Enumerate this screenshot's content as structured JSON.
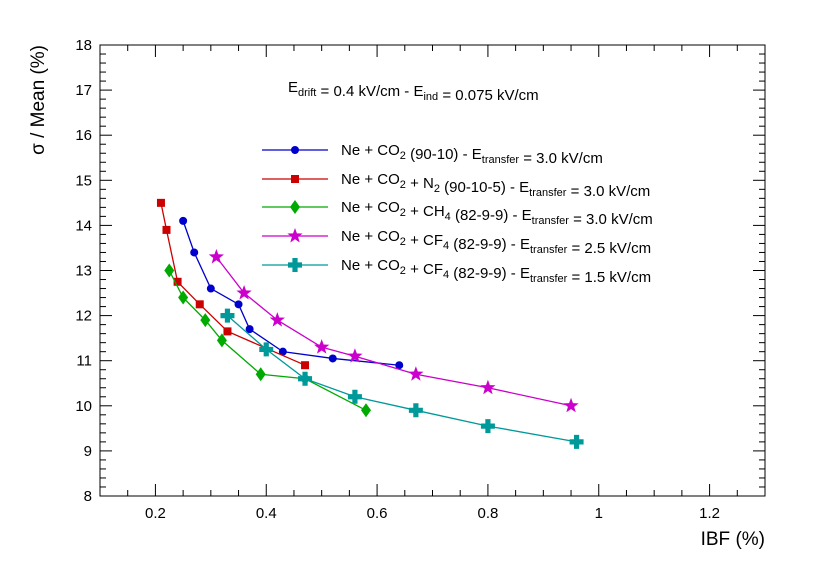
{
  "chart_data": {
    "type": "line",
    "title": "",
    "xlabel": "IBF (%)",
    "ylabel": "σ / Mean (%)",
    "xlim": [
      0.1,
      1.3
    ],
    "ylim": [
      8,
      18
    ],
    "x_ticks": [
      "0.2",
      "0.4",
      "0.6",
      "0.8",
      "1",
      "1.2"
    ],
    "y_ticks": [
      "8",
      "9",
      "10",
      "11",
      "12",
      "13",
      "14",
      "15",
      "16",
      "17",
      "18"
    ],
    "x_tick_values": [
      0.2,
      0.4,
      0.6,
      0.8,
      1.0,
      1.2
    ],
    "y_tick_values": [
      8,
      9,
      10,
      11,
      12,
      13,
      14,
      15,
      16,
      17,
      18
    ],
    "annotation": {
      "parts": [
        {
          "text": "E",
          "sub": "drift"
        },
        {
          "text": " = 0.4 kV/cm - E",
          "sub": "ind"
        },
        {
          "text": " = 0.075 kV/cm",
          "sub": ""
        }
      ]
    },
    "legend_position": "top-right",
    "series": [
      {
        "name": "Ne + CO2 (90-10) - Etransfer = 3.0 kV/cm",
        "legend_parts": [
          {
            "text": "Ne + CO",
            "sub": "2"
          },
          {
            "text": " (90-10) - E",
            "sub": "transfer"
          },
          {
            "text": " = 3.0 kV/cm",
            "sub": ""
          }
        ],
        "color": "#0000cc",
        "marker": "circle",
        "x": [
          0.25,
          0.27,
          0.3,
          0.35,
          0.37,
          0.43,
          0.52,
          0.64
        ],
        "y": [
          14.1,
          13.4,
          12.6,
          12.25,
          11.7,
          11.2,
          11.05,
          10.9
        ]
      },
      {
        "name": "Ne + CO2 + N2 (90-10-5) - Etransfer = 3.0 kV/cm",
        "legend_parts": [
          {
            "text": "Ne + CO",
            "sub": "2"
          },
          {
            "text": " + N",
            "sub": "2"
          },
          {
            "text": " (90-10-5) - E",
            "sub": "transfer"
          },
          {
            "text": " = 3.0 kV/cm",
            "sub": ""
          }
        ],
        "color": "#cc0000",
        "marker": "square",
        "x": [
          0.21,
          0.22,
          0.24,
          0.28,
          0.33,
          0.47
        ],
        "y": [
          14.5,
          13.9,
          12.75,
          12.25,
          11.65,
          10.9
        ]
      },
      {
        "name": "Ne + CO2 + CH4 (82-9-9) - Etransfer = 3.0 kV/cm",
        "legend_parts": [
          {
            "text": "Ne + CO",
            "sub": "2"
          },
          {
            "text": " + CH",
            "sub": "4"
          },
          {
            "text": " (82-9-9) - E",
            "sub": "transfer"
          },
          {
            "text": " = 3.0 kV/cm",
            "sub": ""
          }
        ],
        "color": "#00aa00",
        "marker": "diamond",
        "x": [
          0.225,
          0.25,
          0.29,
          0.32,
          0.39,
          0.47,
          0.58
        ],
        "y": [
          13.0,
          12.4,
          11.9,
          11.45,
          10.7,
          10.6,
          9.9
        ]
      },
      {
        "name": "Ne + CO2 + CF4 (82-9-9) - Etransfer = 2.5 kV/cm",
        "legend_parts": [
          {
            "text": "Ne + CO",
            "sub": "2"
          },
          {
            "text": " + CF",
            "sub": "4"
          },
          {
            "text": " (82-9-9) - E",
            "sub": "transfer"
          },
          {
            "text": " = 2.5 kV/cm",
            "sub": ""
          }
        ],
        "color": "#cc00cc",
        "marker": "star",
        "x": [
          0.31,
          0.36,
          0.42,
          0.5,
          0.56,
          0.67,
          0.8,
          0.95
        ],
        "y": [
          13.3,
          12.5,
          11.9,
          11.3,
          11.1,
          10.7,
          10.4,
          10.0
        ]
      },
      {
        "name": "Ne + CO2 + CF4 (82-9-9) - Etransfer = 1.5 kV/cm",
        "legend_parts": [
          {
            "text": "Ne + CO",
            "sub": "2"
          },
          {
            "text": " + CF",
            "sub": "4"
          },
          {
            "text": " (82-9-9) - E",
            "sub": "transfer"
          },
          {
            "text": " = 1.5 kV/cm",
            "sub": ""
          }
        ],
        "color": "#009999",
        "marker": "cross",
        "x": [
          0.33,
          0.4,
          0.47,
          0.56,
          0.67,
          0.8,
          0.96
        ],
        "y": [
          12.0,
          11.25,
          10.6,
          10.2,
          9.9,
          9.55,
          9.2
        ]
      }
    ]
  }
}
